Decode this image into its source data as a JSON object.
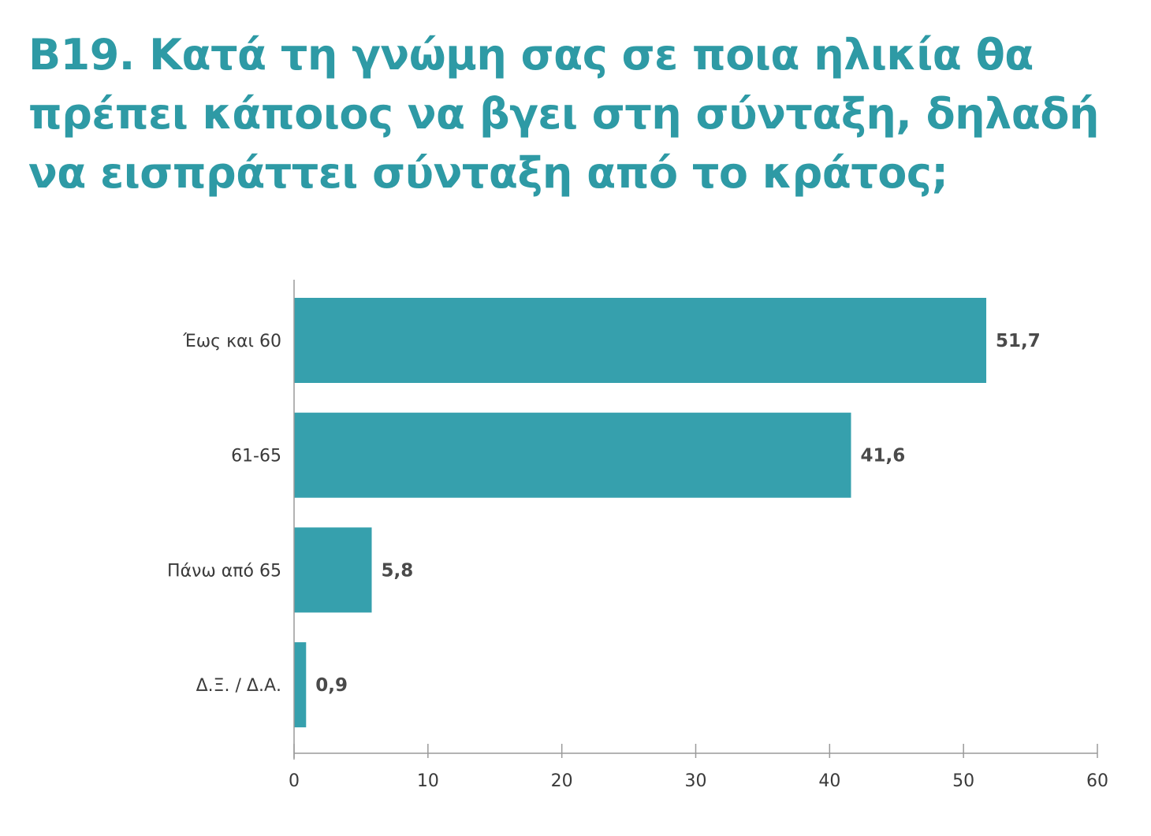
{
  "title_lines": [
    "B19. Κατά τη γνώμη σας σε ποια ηλικία θα",
    "πρέπει κάποιος να βγει στη σύνταξη, δηλαδή",
    "να εισπράττει σύνταξη από το κράτος;"
  ],
  "colors": {
    "title": "#2e9aa5",
    "bar": "#36a0ad",
    "axis": "#9a9a9a"
  },
  "chart_data": {
    "type": "bar",
    "orientation": "horizontal",
    "title": "B19. Κατά τη γνώμη σας σε ποια ηλικία θα πρέπει κάποιος να βγει στη σύνταξη, δηλαδή να εισπράττει σύνταξη από το κράτος;",
    "categories": [
      "Έως και 60",
      "61-65",
      "Πάνω από 65",
      "Δ.Ξ. / Δ.Α."
    ],
    "values": [
      51.7,
      41.6,
      5.8,
      0.9
    ],
    "value_labels": [
      "51,7",
      "41,6",
      "5,8",
      "0,9"
    ],
    "xlim": [
      0,
      60
    ],
    "xticks": [
      0,
      10,
      20,
      30,
      40,
      50,
      60
    ],
    "xlabel": "",
    "ylabel": "",
    "grid": false,
    "legend": "none"
  }
}
